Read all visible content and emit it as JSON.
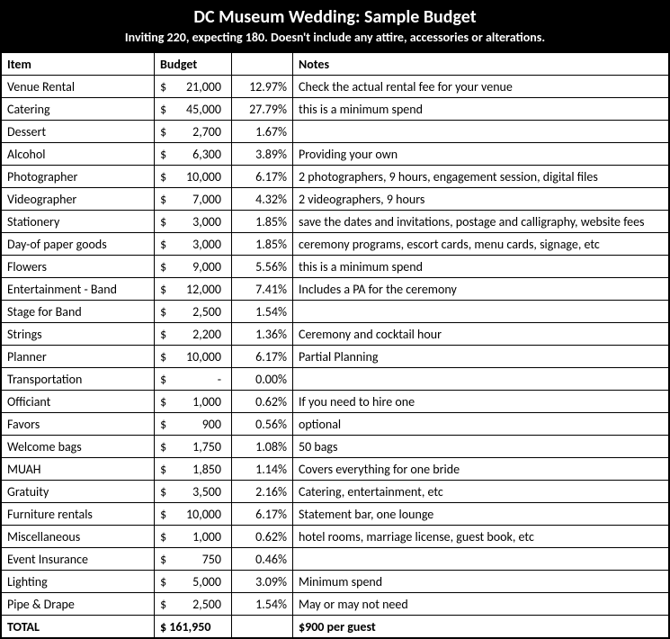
{
  "header": {
    "title": "DC Museum Wedding: Sample Budget",
    "subtitle": "Inviting 220, expecting 180.  Doesn't include any attire, accessories or alterations."
  },
  "columns": {
    "item": "Item",
    "budget": "Budget",
    "pct": "",
    "notes": "Notes"
  },
  "rows": [
    {
      "item": "Venue Rental",
      "currency": "$",
      "amount": "21,000",
      "pct": "12.97%",
      "notes": "Check the actual rental fee for your venue"
    },
    {
      "item": "Catering",
      "currency": "$",
      "amount": "45,000",
      "pct": "27.79%",
      "notes": "this is a minimum spend"
    },
    {
      "item": "Dessert",
      "currency": "$",
      "amount": "2,700",
      "pct": "1.67%",
      "notes": ""
    },
    {
      "item": "Alcohol",
      "currency": "$",
      "amount": "6,300",
      "pct": "3.89%",
      "notes": "Providing your own"
    },
    {
      "item": "Photographer",
      "currency": "$",
      "amount": "10,000",
      "pct": "6.17%",
      "notes": "2 photographers, 9 hours, engagement session, digital files"
    },
    {
      "item": "Videographer",
      "currency": "$",
      "amount": "7,000",
      "pct": "4.32%",
      "notes": "2 videographers, 9 hours"
    },
    {
      "item": "Stationery",
      "currency": "$",
      "amount": "3,000",
      "pct": "1.85%",
      "notes": "save the dates and invitations, postage and calligraphy, website fees"
    },
    {
      "item": "Day-of paper goods",
      "currency": "$",
      "amount": "3,000",
      "pct": "1.85%",
      "notes": "ceremony programs, escort cards, menu cards, signage, etc"
    },
    {
      "item": "Flowers",
      "currency": "$",
      "amount": "9,000",
      "pct": "5.56%",
      "notes": "this is a minimum spend"
    },
    {
      "item": "Entertainment - Band",
      "currency": "$",
      "amount": "12,000",
      "pct": "7.41%",
      "notes": "Includes a PA for the ceremony"
    },
    {
      "item": "Stage for Band",
      "currency": "$",
      "amount": "2,500",
      "pct": "1.54%",
      "notes": ""
    },
    {
      "item": "Strings",
      "currency": "$",
      "amount": "2,200",
      "pct": "1.36%",
      "notes": "Ceremony and cocktail hour"
    },
    {
      "item": "Planner",
      "currency": "$",
      "amount": "10,000",
      "pct": "6.17%",
      "notes": "Partial Planning"
    },
    {
      "item": "Transportation",
      "currency": "$",
      "amount": "-",
      "pct": "0.00%",
      "notes": ""
    },
    {
      "item": "Officiant",
      "currency": "$",
      "amount": "1,000",
      "pct": "0.62%",
      "notes": "If you need to hire one"
    },
    {
      "item": "Favors",
      "currency": "$",
      "amount": "900",
      "pct": "0.56%",
      "notes": "optional"
    },
    {
      "item": "Welcome bags",
      "currency": "$",
      "amount": "1,750",
      "pct": "1.08%",
      "notes": "50 bags"
    },
    {
      "item": "MUAH",
      "currency": "$",
      "amount": "1,850",
      "pct": "1.14%",
      "notes": "Covers everything for one bride"
    },
    {
      "item": "Gratuity",
      "currency": "$",
      "amount": "3,500",
      "pct": "2.16%",
      "notes": "Catering, entertainment, etc"
    },
    {
      "item": "Furniture rentals",
      "currency": "$",
      "amount": "10,000",
      "pct": "6.17%",
      "notes": "Statement bar, one lounge"
    },
    {
      "item": "Miscellaneous",
      "currency": "$",
      "amount": "1,000",
      "pct": "0.62%",
      "notes": "hotel rooms, marriage license, guest book, etc"
    },
    {
      "item": "Event Insurance",
      "currency": "$",
      "amount": "750",
      "pct": "0.46%",
      "notes": ""
    },
    {
      "item": "Lighting",
      "currency": "$",
      "amount": "5,000",
      "pct": "3.09%",
      "notes": "Minimum spend"
    },
    {
      "item": "Pipe & Drape",
      "currency": "$",
      "amount": "2,500",
      "pct": "1.54%",
      "notes": "May or may not need"
    }
  ],
  "total": {
    "label": "TOTAL",
    "amount": "$ 161,950",
    "notes": "$900 per guest"
  }
}
